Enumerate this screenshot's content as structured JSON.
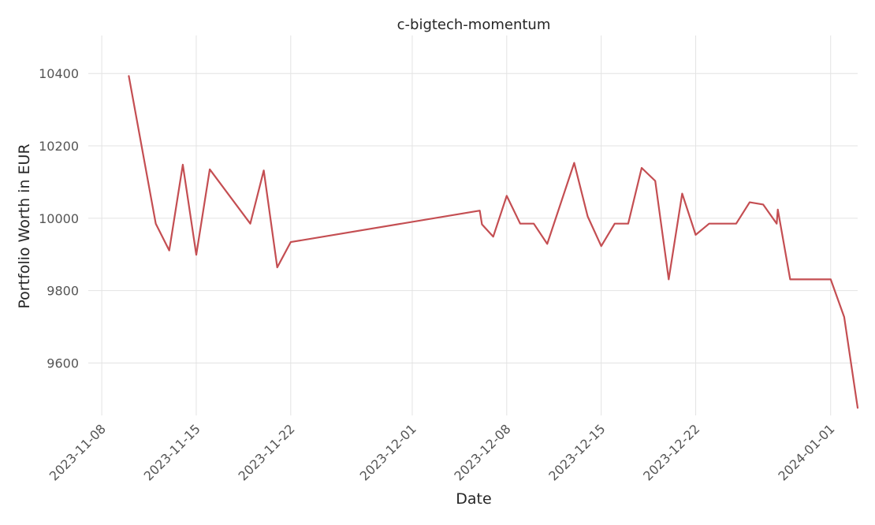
{
  "chart_data": {
    "type": "line",
    "title": "c-bigtech-momentum",
    "xlabel": "Date",
    "ylabel": "Portfolio Worth in EUR",
    "x_ticks": [
      "2023-11-08",
      "2023-11-15",
      "2023-11-22",
      "2023-12-01",
      "2023-12-08",
      "2023-12-15",
      "2023-12-22",
      "2024-01-01"
    ],
    "y_ticks": [
      9600,
      9800,
      10000,
      10200,
      10400
    ],
    "xlim": [
      "2023-11-07",
      "2024-01-03"
    ],
    "ylim": [
      9455,
      10505
    ],
    "grid": true,
    "series": [
      {
        "color": "#c44e52",
        "points": [
          {
            "x": "2023-11-10 00:00",
            "y": 10393
          },
          {
            "x": "2023-11-12 00:00",
            "y": 9985
          },
          {
            "x": "2023-11-13 00:00",
            "y": 9911
          },
          {
            "x": "2023-11-14 00:00",
            "y": 10148
          },
          {
            "x": "2023-11-15 00:00",
            "y": 9899
          },
          {
            "x": "2023-11-16 00:00",
            "y": 10135
          },
          {
            "x": "2023-11-19 00:00",
            "y": 9985
          },
          {
            "x": "2023-11-20 00:00",
            "y": 10132
          },
          {
            "x": "2023-11-21 00:00",
            "y": 9864
          },
          {
            "x": "2023-11-22 00:00",
            "y": 9934
          },
          {
            "x": "2023-12-06 00:00",
            "y": 10021
          },
          {
            "x": "2023-12-06 04:00",
            "y": 9983
          },
          {
            "x": "2023-12-07 00:00",
            "y": 9949
          },
          {
            "x": "2023-12-08 00:00",
            "y": 10062
          },
          {
            "x": "2023-12-09 00:00",
            "y": 9985
          },
          {
            "x": "2023-12-10 00:00",
            "y": 9985
          },
          {
            "x": "2023-12-11 00:00",
            "y": 9929
          },
          {
            "x": "2023-12-13 00:00",
            "y": 10153
          },
          {
            "x": "2023-12-14 00:00",
            "y": 10005
          },
          {
            "x": "2023-12-15 00:00",
            "y": 9923
          },
          {
            "x": "2023-12-16 00:00",
            "y": 9985
          },
          {
            "x": "2023-12-17 00:00",
            "y": 9985
          },
          {
            "x": "2023-12-18 00:00",
            "y": 10139
          },
          {
            "x": "2023-12-19 00:00",
            "y": 10103
          },
          {
            "x": "2023-12-20 00:00",
            "y": 9831
          },
          {
            "x": "2023-12-21 00:00",
            "y": 10068
          },
          {
            "x": "2023-12-22 00:00",
            "y": 9954
          },
          {
            "x": "2023-12-23 00:00",
            "y": 9985
          },
          {
            "x": "2023-12-25 00:00",
            "y": 9985
          },
          {
            "x": "2023-12-26 00:00",
            "y": 10044
          },
          {
            "x": "2023-12-27 00:00",
            "y": 10038
          },
          {
            "x": "2023-12-28 00:00",
            "y": 9985
          },
          {
            "x": "2023-12-28 02:00",
            "y": 10024
          },
          {
            "x": "2023-12-29 00:00",
            "y": 9831
          },
          {
            "x": "2024-01-01 00:00",
            "y": 9831
          },
          {
            "x": "2024-01-02 00:00",
            "y": 9727
          },
          {
            "x": "2024-01-03 00:00",
            "y": 9476
          }
        ]
      }
    ]
  }
}
